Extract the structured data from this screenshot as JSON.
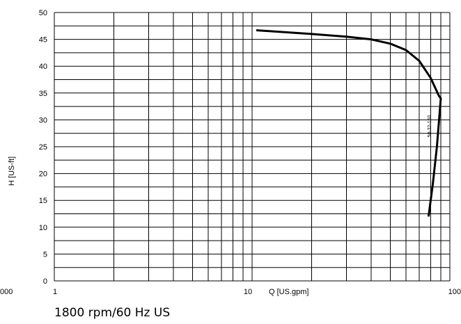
{
  "chart_data": {
    "type": "line",
    "xscale": "log",
    "xlim": [
      1,
      100
    ],
    "ylim": [
      0,
      50
    ],
    "ylabel": "H [US-ft]",
    "xlabel": "Q [US.gpm]",
    "grid": true,
    "xtick_labels": [
      {
        "value": 1,
        "label": "1"
      },
      {
        "value": 10,
        "label": "10"
      },
      {
        "value": 100,
        "label": "100"
      }
    ],
    "left_edge_label": "000",
    "yticks": [
      0,
      5,
      10,
      15,
      20,
      25,
      30,
      35,
      40,
      45,
      50
    ],
    "series": [
      {
        "name": "50-32-160",
        "points": [
          {
            "x": 10.5,
            "y": 46.7
          },
          {
            "x": 20,
            "y": 46.0
          },
          {
            "x": 30,
            "y": 45.5
          },
          {
            "x": 40,
            "y": 45.0
          },
          {
            "x": 50,
            "y": 44.2
          },
          {
            "x": 60,
            "y": 43.0
          },
          {
            "x": 70,
            "y": 41.0
          },
          {
            "x": 80,
            "y": 37.8
          },
          {
            "x": 88,
            "y": 34.5
          },
          {
            "x": 90,
            "y": 34.0
          },
          {
            "x": 86,
            "y": 25
          },
          {
            "x": 82,
            "y": 18
          },
          {
            "x": 78,
            "y": 12
          }
        ]
      }
    ]
  },
  "caption": "1800 rpm/60 Hz US"
}
